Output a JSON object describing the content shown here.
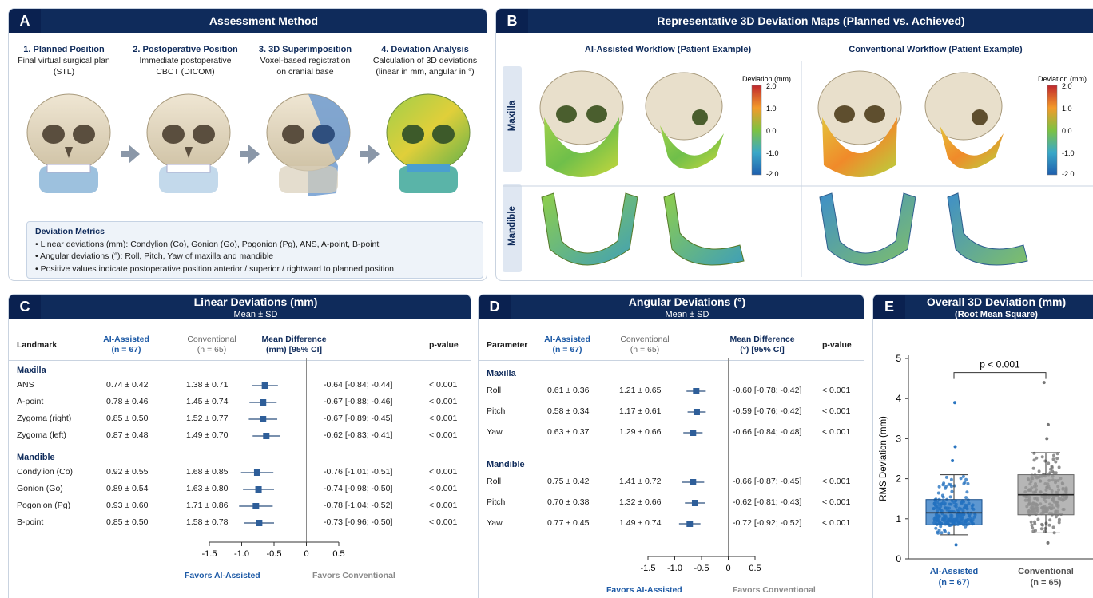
{
  "panelA": {
    "letter": "A",
    "title": "Assessment Method",
    "steps": [
      {
        "title": "1. Planned Position",
        "line1": "Final virtual surgical plan",
        "line2": "(STL)"
      },
      {
        "title": "2. Postoperative Position",
        "line1": "Immediate postoperative",
        "line2": "CBCT (DICOM)"
      },
      {
        "title": "3. 3D Superimposition",
        "line1": "Voxel-based registration",
        "line2": "on cranial base"
      },
      {
        "title": "4. Deviation Analysis",
        "line1": "Calculation of 3D deviations",
        "line2": "(linear in mm, angular in °)"
      }
    ],
    "metrics_title": "Deviation Metrics",
    "metrics": [
      "• Linear deviations (mm): Condylion (Co), Gonion (Go), Pogonion (Pg), ANS, A-point, B-point",
      "• Angular deviations (°): Roll, Pitch, Yaw of maxilla and mandible",
      "• Positive values indicate postoperative position anterior / superior / rightward to planned position"
    ]
  },
  "panelB": {
    "letter": "B",
    "title": "Representative 3D Deviation Maps (Planned vs. Achieved)",
    "col_ai": "AI-Assisted Workflow (Patient Example)",
    "col_conv": "Conventional Workflow (Patient Example)",
    "row_maxilla": "Maxilla",
    "row_mandible": "Mandible",
    "scale_title": "Deviation (mm)",
    "scale_ticks": [
      "2.0",
      "1.0",
      "0.0",
      "-1.0",
      "-2.0"
    ],
    "colors": {
      "high": "#c0282d",
      "mid": "#7dc242",
      "low": "#1f5fae"
    }
  },
  "panelC": {
    "letter": "C",
    "title": "Linear Deviations (mm)",
    "subtitle": "Mean ± SD",
    "headers": {
      "landmark": "Landmark",
      "ai": "AI-Assisted",
      "ai_n": "(n = 67)",
      "conv": "Conventional",
      "conv_n": "(n = 65)",
      "diff": "Mean Difference",
      "diff2": "(mm) [95% CI]",
      "p": "p-value"
    },
    "favors_ai": "Favors AI-Assisted",
    "favors_conv": "Favors Conventional",
    "sections": [
      {
        "name": "Maxilla",
        "rows": [
          {
            "label": "ANS",
            "ai": "0.74 ± 0.42",
            "conv": "1.38 ± 0.71",
            "ci_text": "-0.64 [-0.84; -0.44]",
            "p": "< 0.001"
          },
          {
            "label": "A-point",
            "ai": "0.78 ± 0.46",
            "conv": "1.45 ± 0.74",
            "ci_text": "-0.67 [-0.88; -0.46]",
            "p": "< 0.001"
          },
          {
            "label": "Zygoma (right)",
            "ai": "0.85 ± 0.50",
            "conv": "1.52 ± 0.77",
            "ci_text": "-0.67 [-0.89; -0.45]",
            "p": "< 0.001"
          },
          {
            "label": "Zygoma (left)",
            "ai": "0.87 ± 0.48",
            "conv": "1.49 ± 0.70",
            "ci_text": "-0.62 [-0.83; -0.41]",
            "p": "< 0.001"
          }
        ]
      },
      {
        "name": "Mandible",
        "rows": [
          {
            "label": "Condylion (Co)",
            "ai": "0.92 ± 0.55",
            "conv": "1.68 ± 0.85",
            "ci_text": "-0.76 [-1.01; -0.51]",
            "p": "< 0.001"
          },
          {
            "label": "Gonion (Go)",
            "ai": "0.89 ± 0.54",
            "conv": "1.63 ± 0.80",
            "ci_text": "-0.74 [-0.98; -0.50]",
            "p": "< 0.001"
          },
          {
            "label": "Pogonion (Pg)",
            "ai": "0.93 ± 0.60",
            "conv": "1.71 ± 0.86",
            "ci_text": "-0.78 [-1.04; -0.52]",
            "p": "< 0.001"
          },
          {
            "label": "B-point",
            "ai": "0.85 ± 0.50",
            "conv": "1.58 ± 0.78",
            "ci_text": "-0.73 [-0.96; -0.50]",
            "p": "< 0.001"
          }
        ]
      }
    ]
  },
  "panelD": {
    "letter": "D",
    "title": "Angular Deviations (°)",
    "subtitle": "Mean ± SD",
    "headers": {
      "landmark": "Parameter",
      "ai": "AI-Assisted",
      "ai_n": "(n = 67)",
      "conv": "Conventional",
      "conv_n": "(n = 65)",
      "diff": "Mean Difference",
      "diff2": "(°) [95% CI]",
      "p": "p-value"
    },
    "favors_ai": "Favors AI-Assisted",
    "favors_conv": "Favors Conventional",
    "sections": [
      {
        "name": "Maxilla",
        "rows": [
          {
            "label": "Roll",
            "ai": "0.61 ± 0.36",
            "conv": "1.21 ± 0.65",
            "ci_text": "-0.60 [-0.78; -0.42]",
            "p": "< 0.001"
          },
          {
            "label": "Pitch",
            "ai": "0.58 ± 0.34",
            "conv": "1.17 ± 0.61",
            "ci_text": "-0.59 [-0.76; -0.42]",
            "p": "< 0.001"
          },
          {
            "label": "Yaw",
            "ai": "0.63 ± 0.37",
            "conv": "1.29 ± 0.66",
            "ci_text": "-0.66 [-0.84; -0.48]",
            "p": "< 0.001"
          }
        ]
      },
      {
        "name": "Mandible",
        "rows": [
          {
            "label": "Roll",
            "ai": "0.75 ± 0.42",
            "conv": "1.41 ± 0.72",
            "ci_text": "-0.66 [-0.87; -0.45]",
            "p": "< 0.001"
          },
          {
            "label": "Pitch",
            "ai": "0.70 ± 0.38",
            "conv": "1.32 ± 0.66",
            "ci_text": "-0.62 [-0.81; -0.43]",
            "p": "< 0.001"
          },
          {
            "label": "Yaw",
            "ai": "0.77 ± 0.45",
            "conv": "1.49 ± 0.74",
            "ci_text": "-0.72 [-0.92; -0.52]",
            "p": "< 0.001"
          }
        ]
      }
    ]
  },
  "panelE": {
    "letter": "E",
    "title": "Overall 3D Deviation (mm)",
    "subtitle": "(Root Mean Square)",
    "ylabel": "RMS Deviation (mm)",
    "pvalue": "p < 0.001",
    "groups": [
      {
        "label": "AI-Assisted",
        "n": "(n = 67)"
      },
      {
        "label": "Conventional",
        "n": "(n = 65)"
      }
    ]
  },
  "chart_data": [
    {
      "type": "forest",
      "id": "linear",
      "title": "Linear Deviations (mm)",
      "xlim": [
        -1.5,
        0.5
      ],
      "xticks": [
        -1.5,
        -1.0,
        -0.5,
        0,
        0.5
      ],
      "categories": [
        "ANS",
        "A-point",
        "Zygoma (right)",
        "Zygoma (left)",
        "Condylion (Co)",
        "Gonion (Go)",
        "Pogonion (Pg)",
        "B-point"
      ],
      "mean": [
        -0.64,
        -0.67,
        -0.67,
        -0.62,
        -0.76,
        -0.74,
        -0.78,
        -0.73
      ],
      "lower": [
        -0.84,
        -0.88,
        -0.89,
        -0.83,
        -1.01,
        -0.98,
        -1.04,
        -0.96
      ],
      "upper": [
        -0.44,
        -0.46,
        -0.45,
        -0.41,
        -0.51,
        -0.5,
        -0.52,
        -0.5
      ]
    },
    {
      "type": "forest",
      "id": "angular",
      "title": "Angular Deviations (°)",
      "xlim": [
        -1.5,
        0.5
      ],
      "xticks": [
        -1.5,
        -1.0,
        -0.5,
        0,
        0.5
      ],
      "categories": [
        "Roll",
        "Pitch",
        "Yaw",
        "Roll",
        "Pitch",
        "Yaw"
      ],
      "mean": [
        -0.6,
        -0.59,
        -0.66,
        -0.66,
        -0.62,
        -0.72
      ],
      "lower": [
        -0.78,
        -0.76,
        -0.84,
        -0.87,
        -0.81,
        -0.92
      ],
      "upper": [
        -0.42,
        -0.42,
        -0.48,
        -0.45,
        -0.43,
        -0.52
      ]
    },
    {
      "type": "box",
      "id": "rms",
      "title": "Overall 3D Deviation (mm)",
      "ylabel": "RMS Deviation (mm)",
      "ylim": [
        0,
        5
      ],
      "yticks": [
        0,
        1,
        2,
        3,
        4,
        5
      ],
      "categories": [
        "AI-Assisted",
        "Conventional"
      ],
      "boxes": [
        {
          "whisker_low": 0.6,
          "q1": 0.85,
          "median": 1.15,
          "q3": 1.48,
          "whisker_high": 2.1,
          "max": 3.9,
          "min": 0.35,
          "color": "#1f6fbf"
        },
        {
          "whisker_low": 0.65,
          "q1": 1.1,
          "median": 1.6,
          "q3": 2.1,
          "whisker_high": 2.65,
          "max": 4.4,
          "min": 0.4,
          "color": "#9a9a9a"
        }
      ]
    }
  ]
}
